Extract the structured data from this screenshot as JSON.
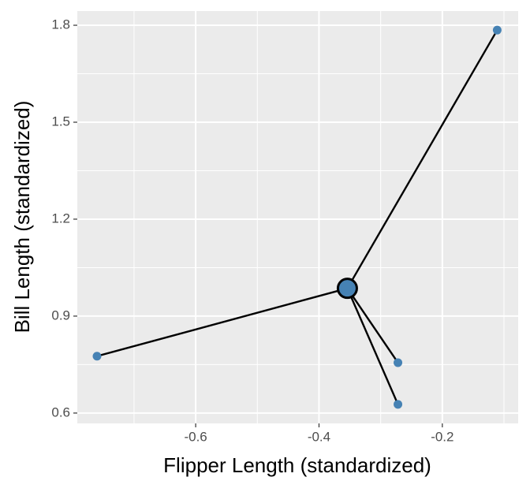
{
  "chart_data": {
    "type": "scatter",
    "x_label": "Flipper Length (standardized)",
    "y_label": "Bill Length (standardized)",
    "points": {
      "x": [
        -0.76,
        -0.272,
        -0.272,
        -0.111
      ],
      "y": [
        0.776,
        0.756,
        0.627,
        1.785
      ],
      "color": "#4682b4"
    },
    "centroid": {
      "x": -0.354,
      "y": 0.986,
      "color": "#4682b4"
    },
    "xlim": [
      -0.792,
      -0.077
    ],
    "ylim": [
      0.568,
      1.844
    ],
    "xticks": [
      -0.6,
      -0.4,
      -0.2
    ],
    "yticks": [
      0.6,
      0.9,
      1.2,
      1.5,
      1.8
    ],
    "x_minor_ticks": [
      -0.7,
      -0.5,
      -0.3,
      -0.1
    ],
    "y_minor_ticks": [
      0.75,
      1.05,
      1.35,
      1.65
    ],
    "grid": true
  }
}
